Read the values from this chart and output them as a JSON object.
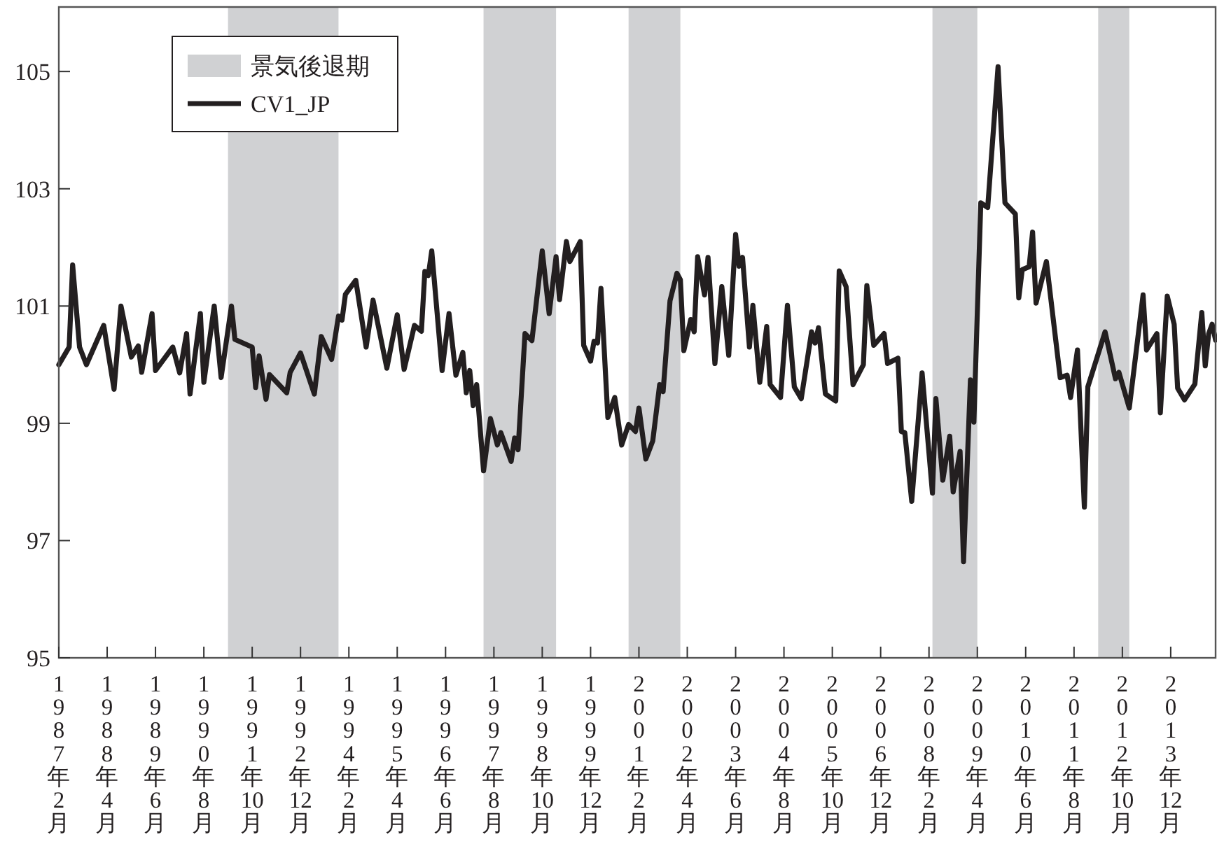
{
  "chart_data": {
    "type": "line",
    "x": [
      "1987-02",
      "1987-05",
      "1987-06",
      "1987-08",
      "1987-10",
      "1988-03",
      "1988-06",
      "1988-08",
      "1988-11",
      "1989-01",
      "1989-02",
      "1989-05",
      "1989-06",
      "1989-11",
      "1990-01",
      "1990-03",
      "1990-04",
      "1990-07",
      "1990-08",
      "1990-11",
      "1991-01",
      "1991-04",
      "1991-05",
      "1991-10",
      "1991-11",
      "1991-12",
      "1992-02",
      "1992-03",
      "1992-08",
      "1992-09",
      "1992-12",
      "1993-04",
      "1993-06",
      "1993-09",
      "1993-11",
      "1993-12",
      "1994-01",
      "1994-04",
      "1994-07",
      "1994-09",
      "1995-01",
      "1995-04",
      "1995-06",
      "1995-09",
      "1995-11",
      "1995-12",
      "1996-01",
      "1996-02",
      "1996-05",
      "1996-07",
      "1996-09",
      "1996-11",
      "1996-12",
      "1997-01",
      "1997-02",
      "1997-03",
      "1997-05",
      "1997-07",
      "1997-09",
      "1997-10",
      "1998-01",
      "1998-02",
      "1998-03",
      "1998-05",
      "1998-07",
      "1998-10",
      "1998-12",
      "1999-02",
      "1999-03",
      "1999-05",
      "1999-06",
      "1999-09",
      "1999-10",
      "1999-12",
      "2000-01",
      "2000-02",
      "2000-03",
      "2000-05",
      "2000-07",
      "2000-09",
      "2000-11",
      "2001-01",
      "2001-02",
      "2001-04",
      "2001-06",
      "2001-08",
      "2001-09",
      "2001-11",
      "2002-01",
      "2002-02",
      "2002-03",
      "2002-05",
      "2002-06",
      "2002-07",
      "2002-09",
      "2002-10",
      "2002-12",
      "2003-02",
      "2003-04",
      "2003-06",
      "2003-07",
      "2003-08",
      "2003-10",
      "2003-11",
      "2004-01",
      "2004-03",
      "2004-04",
      "2004-07",
      "2004-09",
      "2004-11",
      "2005-01",
      "2005-04",
      "2005-05",
      "2005-06",
      "2005-08",
      "2005-11",
      "2005-12",
      "2006-02",
      "2006-04",
      "2006-07",
      "2006-08",
      "2006-10",
      "2007-01",
      "2007-02",
      "2007-05",
      "2007-06",
      "2007-07",
      "2007-09",
      "2007-12",
      "2008-03",
      "2008-04",
      "2008-06",
      "2008-08",
      "2008-09",
      "2008-11",
      "2008-12",
      "2009-02",
      "2009-03",
      "2009-05",
      "2009-07",
      "2009-10",
      "2009-12",
      "2010-03",
      "2010-04",
      "2010-05",
      "2010-07",
      "2010-08",
      "2010-09",
      "2010-12",
      "2011-04",
      "2011-06",
      "2011-07",
      "2011-09",
      "2011-11",
      "2011-12",
      "2012-05",
      "2012-08",
      "2012-09",
      "2012-12",
      "2013-04",
      "2013-05",
      "2013-08",
      "2013-09",
      "2013-11",
      "2014-01",
      "2014-02",
      "2014-04",
      "2014-07",
      "2014-09",
      "2014-10",
      "2014-11",
      "2014-12",
      "2015-01"
    ],
    "series": [
      {
        "name": "CV1_JP",
        "color": "#231f20",
        "values": [
          100.0,
          100.3,
          101.7,
          100.3,
          100.0,
          100.67,
          99.58,
          101.0,
          100.13,
          100.32,
          99.87,
          100.87,
          99.9,
          100.3,
          99.86,
          100.53,
          99.5,
          100.87,
          99.7,
          101.0,
          99.78,
          101.0,
          100.43,
          100.3,
          99.61,
          100.15,
          99.41,
          99.83,
          99.52,
          99.87,
          100.2,
          99.5,
          100.48,
          100.09,
          100.83,
          100.76,
          101.2,
          101.44,
          100.3,
          101.1,
          99.94,
          100.85,
          99.92,
          100.67,
          100.57,
          101.59,
          101.52,
          101.94,
          99.9,
          100.87,
          99.82,
          100.21,
          99.52,
          99.9,
          99.3,
          99.66,
          98.19,
          99.08,
          98.63,
          98.84,
          98.35,
          98.75,
          98.55,
          100.53,
          100.41,
          101.94,
          100.87,
          101.84,
          101.11,
          102.1,
          101.76,
          102.1,
          100.33,
          100.06,
          100.4,
          100.37,
          101.3,
          99.1,
          99.44,
          98.63,
          98.98,
          98.86,
          99.26,
          98.39,
          98.7,
          99.66,
          99.54,
          101.09,
          101.56,
          101.45,
          100.24,
          100.77,
          100.56,
          101.84,
          101.19,
          101.83,
          100.02,
          101.33,
          100.16,
          102.22,
          101.68,
          101.83,
          100.3,
          101.01,
          99.7,
          100.65,
          99.66,
          99.44,
          101.01,
          99.62,
          99.42,
          100.56,
          100.37,
          100.63,
          99.5,
          99.38,
          101.6,
          101.33,
          99.66,
          100.0,
          101.35,
          100.33,
          100.53,
          100.02,
          100.11,
          98.86,
          98.84,
          97.67,
          99.86,
          97.81,
          99.42,
          98.03,
          98.78,
          97.83,
          98.52,
          96.64,
          99.74,
          99.02,
          102.76,
          102.68,
          105.08,
          102.76,
          102.57,
          101.14,
          101.62,
          101.67,
          102.26,
          101.05,
          101.76,
          99.78,
          99.82,
          99.44,
          100.25,
          97.57,
          99.62,
          100.56,
          99.76,
          99.87,
          99.26,
          101.19,
          100.25,
          100.53,
          99.18,
          101.17,
          100.69,
          99.6,
          99.4,
          99.67,
          100.89,
          99.98,
          100.53,
          100.69,
          100.42
        ]
      }
    ],
    "xlim": [
      "1987-02",
      "2015-01"
    ],
    "ylim": [
      95,
      106.1
    ],
    "yticks": [
      95,
      97,
      99,
      101,
      103,
      105
    ],
    "xticks": [
      {
        "value": "1987-02",
        "label": "1987年2月"
      },
      {
        "value": "1988-04",
        "label": "1988年4月"
      },
      {
        "value": "1989-06",
        "label": "1989年6月"
      },
      {
        "value": "1990-08",
        "label": "1990年8月"
      },
      {
        "value": "1991-10",
        "label": "1991年10月"
      },
      {
        "value": "1992-12",
        "label": "1992年12月"
      },
      {
        "value": "1994-02",
        "label": "1994年2月"
      },
      {
        "value": "1995-04",
        "label": "1995年4月"
      },
      {
        "value": "1996-06",
        "label": "1996年6月"
      },
      {
        "value": "1997-08",
        "label": "1997年8月"
      },
      {
        "value": "1998-10",
        "label": "1998年10月"
      },
      {
        "value": "1999-12",
        "label": "1999年12月"
      },
      {
        "value": "2001-02",
        "label": "2001年2月"
      },
      {
        "value": "2002-04",
        "label": "2002年4月"
      },
      {
        "value": "2003-06",
        "label": "2003年6月"
      },
      {
        "value": "2004-08",
        "label": "2004年8月"
      },
      {
        "value": "2005-10",
        "label": "2005年10月"
      },
      {
        "value": "2006-12",
        "label": "2006年12月"
      },
      {
        "value": "2008-02",
        "label": "2008年2月"
      },
      {
        "value": "2009-04",
        "label": "2009年4月"
      },
      {
        "value": "2010-06",
        "label": "2010年6月"
      },
      {
        "value": "2011-08",
        "label": "2011年8月"
      },
      {
        "value": "2012-10",
        "label": "2012年10月"
      },
      {
        "value": "2013-12",
        "label": "2013年12月"
      }
    ],
    "bands": [
      {
        "axis": "x",
        "from": "1991-03",
        "to": "1993-11",
        "label": "景気後退期",
        "color": "#d0d1d3"
      },
      {
        "axis": "x",
        "from": "1997-05",
        "to": "1999-02",
        "color": "#d0d1d3"
      },
      {
        "axis": "x",
        "from": "2000-11",
        "to": "2002-02",
        "color": "#d0d1d3"
      },
      {
        "axis": "x",
        "from": "2008-03",
        "to": "2009-04",
        "color": "#d0d1d3"
      },
      {
        "axis": "x",
        "from": "2012-03",
        "to": "2012-12",
        "color": "#d0d1d3"
      }
    ],
    "legend": "top left",
    "line_style": "solid",
    "marker": "none",
    "grid": false
  }
}
